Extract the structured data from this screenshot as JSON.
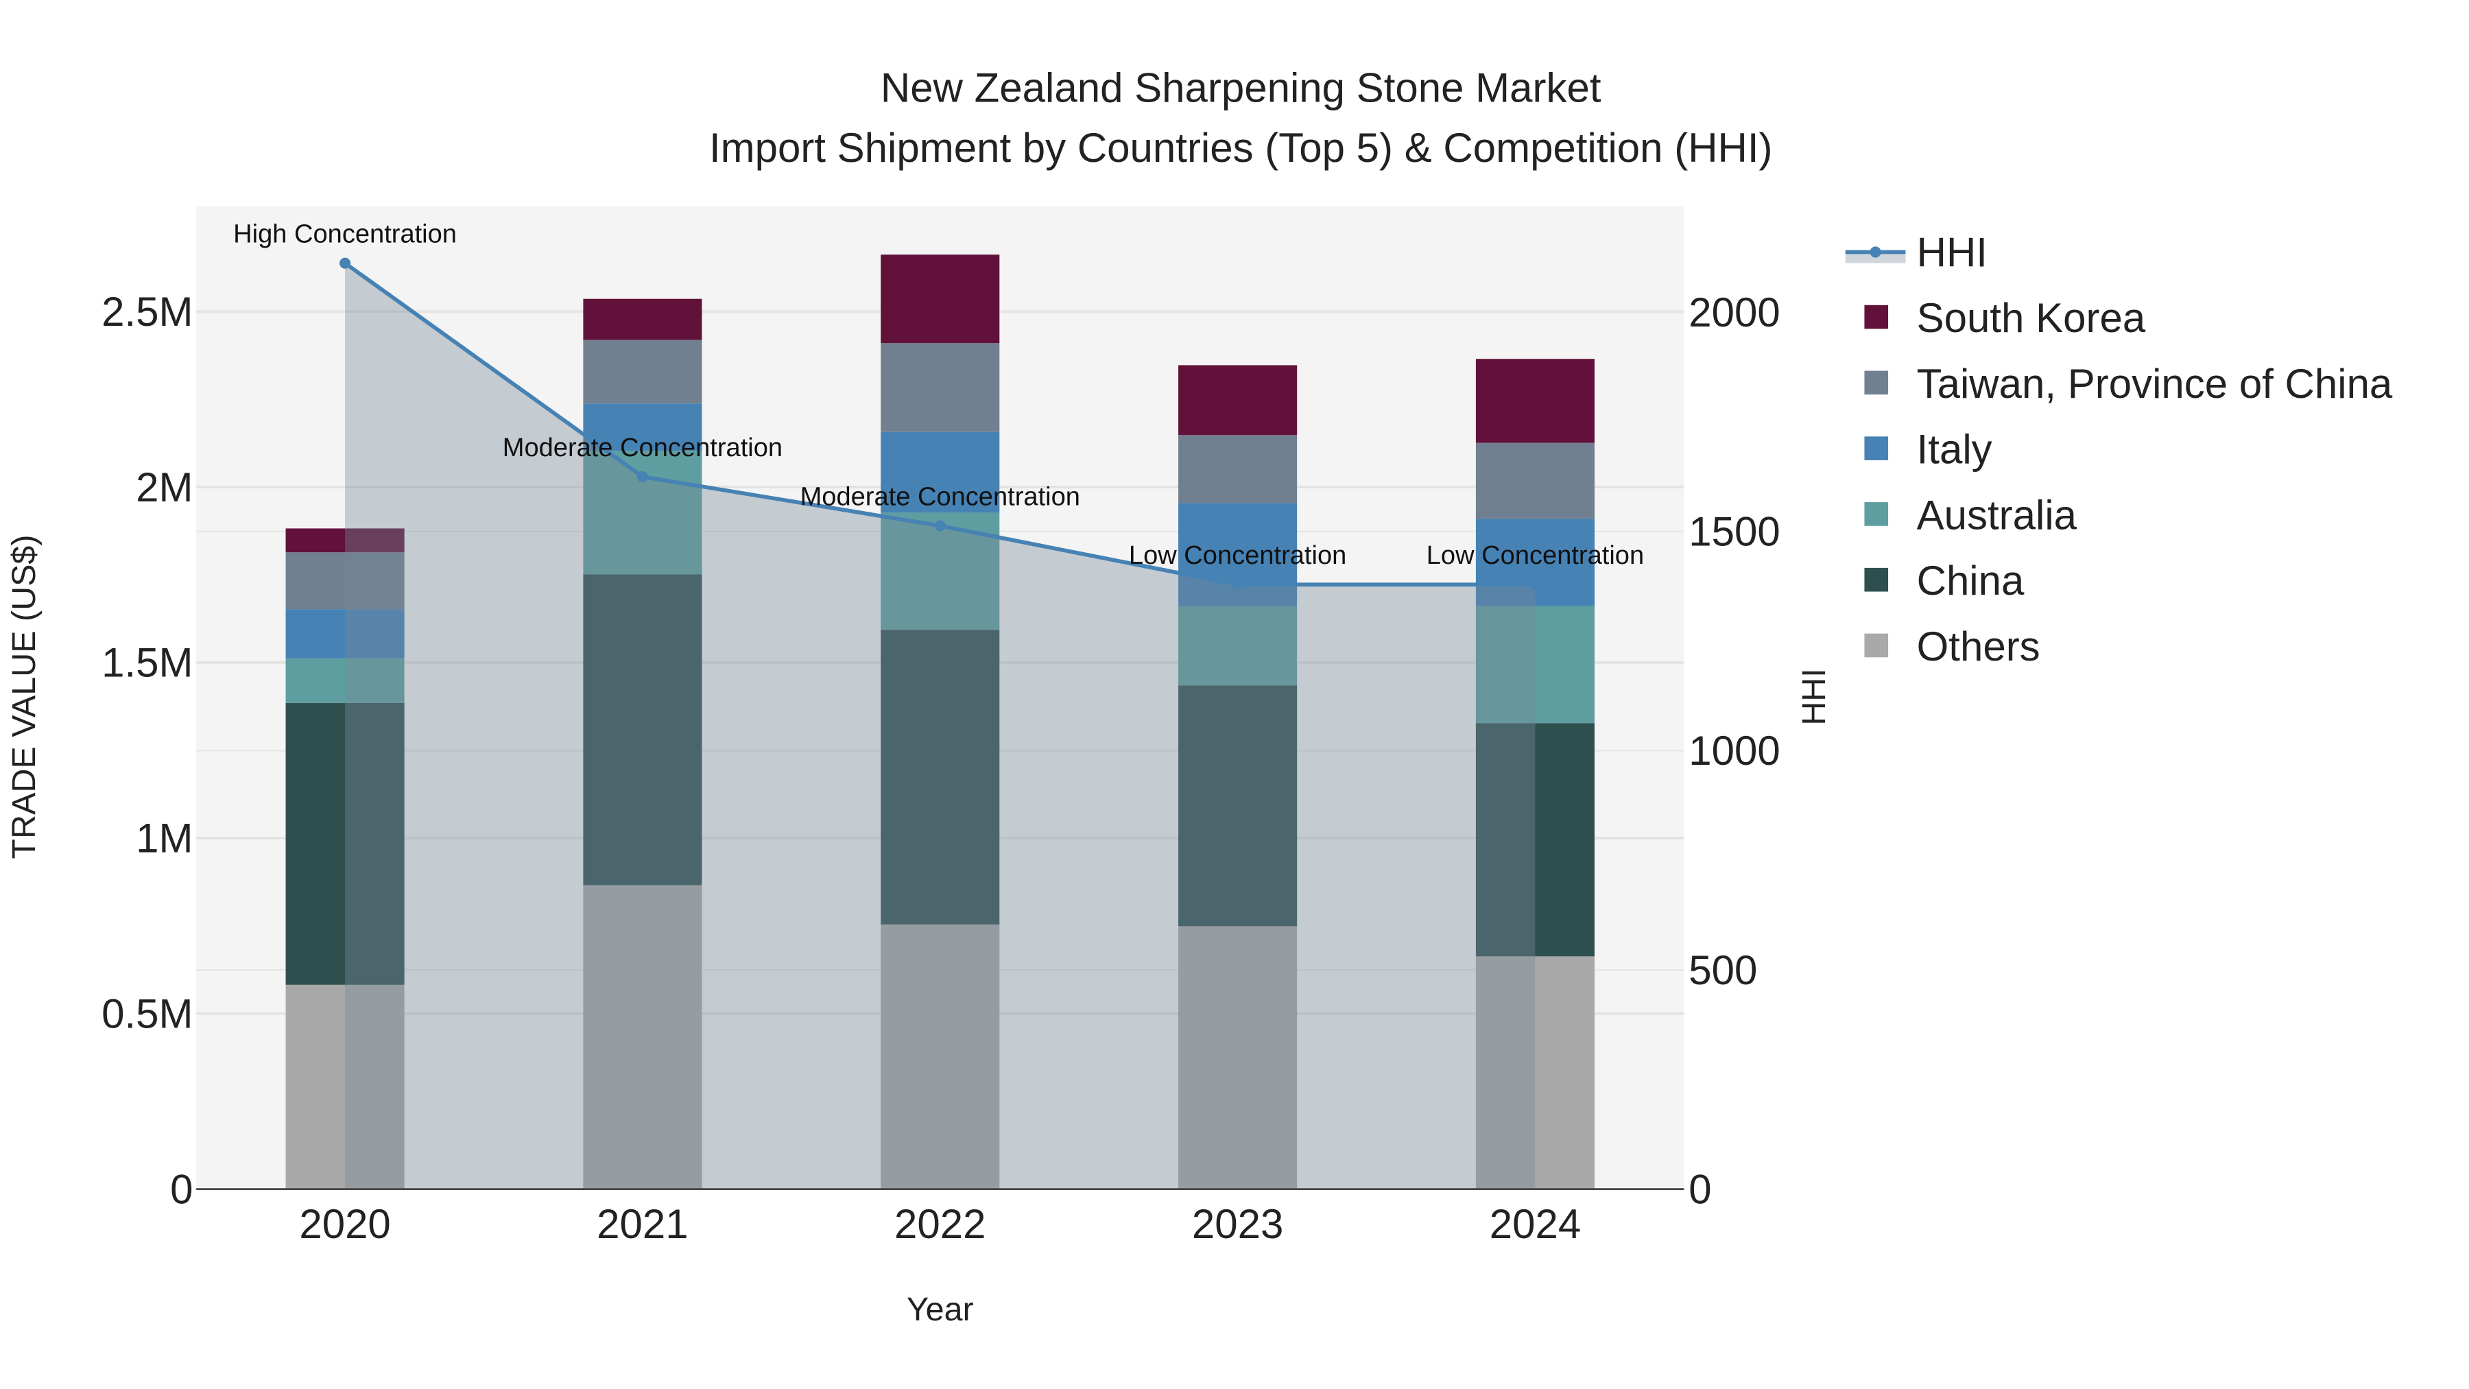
{
  "chart_data": {
    "type": "bar",
    "stacked": true,
    "title": "New Zealand Sharpening Stone Market",
    "subtitle": "Import Shipment by Countries (Top 5) & Competition (HHI)",
    "xlabel": "Year",
    "ylabel": "TRADE VALUE (US$)",
    "y2label": "HHI",
    "categories": [
      "2020",
      "2021",
      "2022",
      "2023",
      "2024"
    ],
    "ylim": [
      0,
      2800000
    ],
    "y2lim": [
      0,
      2242
    ],
    "yticks": [
      0,
      500000,
      1000000,
      1500000,
      2000000,
      2500000
    ],
    "ytick_labels": [
      "0",
      "0.5M",
      "1M",
      "1.5M",
      "2M",
      "2.5M"
    ],
    "y2ticks": [
      0,
      500,
      1000,
      1500,
      2000
    ],
    "y2tick_labels": [
      "0",
      "500",
      "1000",
      "1500",
      "2000"
    ],
    "grid": true,
    "legend_position": "right",
    "series": [
      {
        "name": "Others",
        "color": "#a9a9a9",
        "values": [
          582000,
          866000,
          754000,
          749000,
          663000
        ]
      },
      {
        "name": "China",
        "color": "#2f4f4f",
        "values": [
          803000,
          885000,
          839000,
          686000,
          664000
        ]
      },
      {
        "name": "Australia",
        "color": "#5f9ea0",
        "values": [
          127000,
          352000,
          334000,
          226000,
          334000
        ]
      },
      {
        "name": "Italy",
        "color": "#4682b4",
        "values": [
          140000,
          135000,
          230000,
          293000,
          248000
        ]
      },
      {
        "name": "Taiwan, Province of China",
        "color": "#708090",
        "values": [
          162000,
          181000,
          253000,
          194000,
          217000
        ]
      },
      {
        "name": "South Korea",
        "color": "#62123a",
        "values": [
          68000,
          117000,
          252000,
          199000,
          239000
        ]
      }
    ],
    "hhi": {
      "name": "HHI",
      "color": "#4682b4",
      "fill": "#778899",
      "values": [
        2112,
        1625,
        1513,
        1379,
        1379
      ],
      "annotations": [
        "High Concentration",
        "Moderate Concentration",
        "Moderate Concentration",
        "Low Concentration",
        "Low Concentration"
      ]
    },
    "legend_order": [
      "HHI",
      "South Korea",
      "Taiwan, Province of China",
      "Italy",
      "Australia",
      "China",
      "Others"
    ]
  }
}
